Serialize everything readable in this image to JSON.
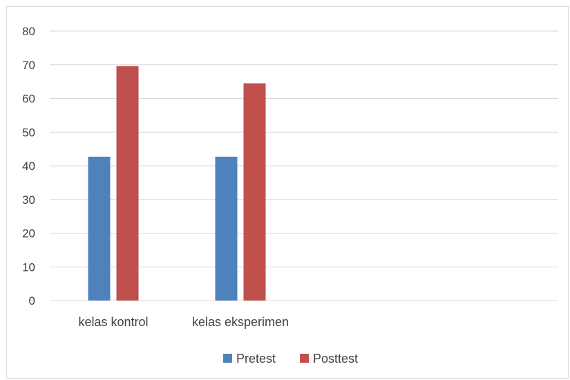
{
  "chart_data": {
    "type": "bar",
    "title": "",
    "xlabel": "",
    "ylabel": "",
    "categories": [
      "kelas kontrol",
      "kelas eksperimen",
      "",
      ""
    ],
    "series": [
      {
        "name": "Pretest",
        "values": [
          42.7,
          42.7,
          null,
          null
        ],
        "color": "#4f81bd"
      },
      {
        "name": "Posttest",
        "values": [
          69.6,
          64.5,
          null,
          null
        ],
        "color": "#c0504d"
      }
    ],
    "ylim": [
      0,
      80
    ],
    "yticks": [
      0,
      10,
      20,
      30,
      40,
      50,
      60,
      70,
      80
    ],
    "grid": true,
    "legend": "bottom",
    "colors": {
      "gridline": "#d9d9d9",
      "text": "#404040"
    }
  }
}
